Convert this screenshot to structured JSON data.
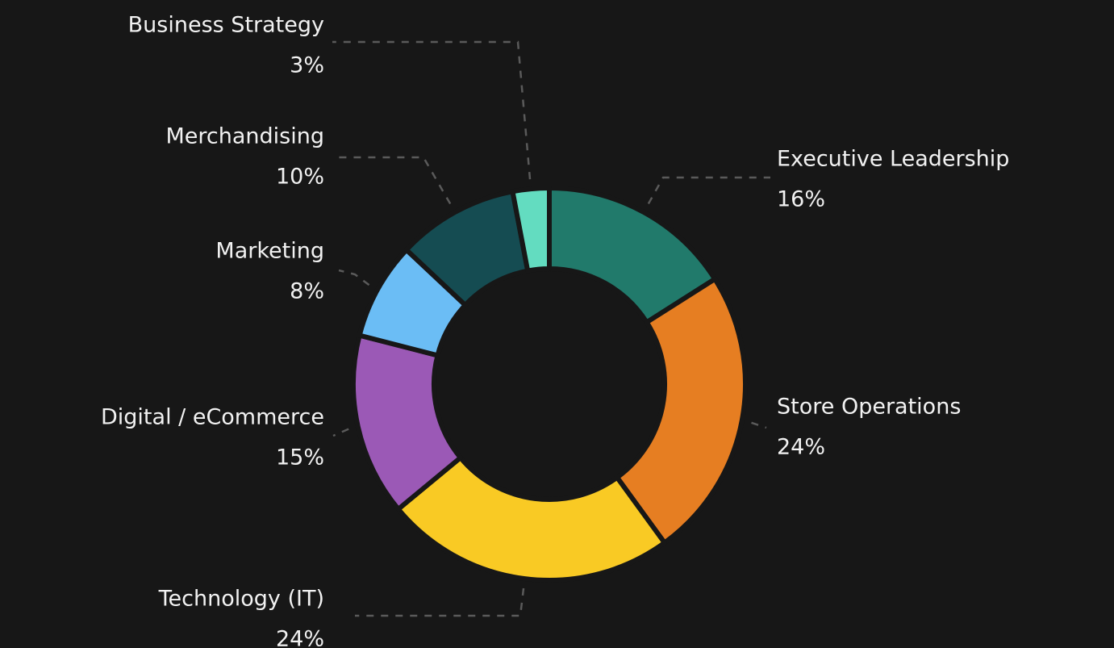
{
  "chart_data": {
    "type": "donut",
    "categories": [
      "Executive Leadership",
      "Store Operations",
      "Technology (IT)",
      "Digital / eCommerce",
      "Marketing",
      "Merchandising",
      "Business Strategy"
    ],
    "values": [
      16,
      24,
      24,
      15,
      8,
      10,
      3
    ],
    "value_labels": [
      "16%",
      "24%",
      "24%",
      "15%",
      "8%",
      "10%",
      "3%"
    ],
    "colors": [
      "#217a6b",
      "#e67e22",
      "#f9ca24",
      "#9b59b6",
      "#6bbdf5",
      "#154c52",
      "#63dcc0"
    ]
  }
}
